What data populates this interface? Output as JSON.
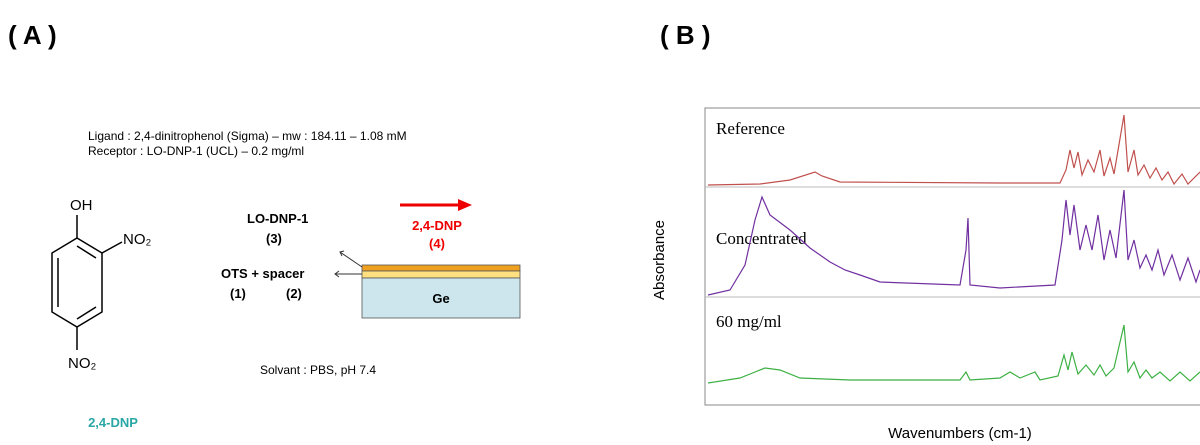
{
  "panel_a": {
    "label": "( A )",
    "ligand": "Ligand :  2,4-dinitrophenol (Sigma) – mw : 184.11 – 1.08 mM",
    "receptor": "Receptor : LO-DNP-1 (UCL) – 0.2 mg/ml",
    "oh": "OH",
    "no2_top": "NO₂",
    "no2_bottom": "NO₂",
    "molecule_name": "2,4-DNP",
    "receptor_label": "LO-DNP-1",
    "receptor_num": "(3)",
    "ots_label": "OTS + spacer",
    "ots_num": "(1)",
    "spacer_num": "(2)",
    "analyte_label": "2,4-DNP",
    "analyte_num": "(4)",
    "substrate": "Ge",
    "solvent": "Solvant : PBS, pH 7.4"
  },
  "panel_b": {
    "label": "( B )",
    "y_axis": "Absorbance",
    "x_axis": "Wavenumbers (cm-1)",
    "traces": [
      "Reference",
      "Concentrated",
      "60 mg/ml"
    ]
  }
}
